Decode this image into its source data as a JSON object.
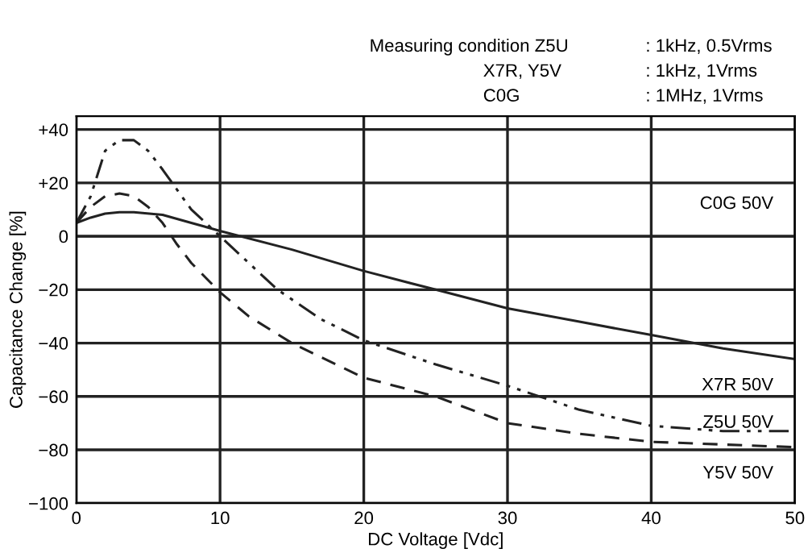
{
  "chart_data": {
    "type": "line",
    "xlabel": "DC Voltage [Vdc]",
    "ylabel": "Capacitance Change [%]",
    "xlim": [
      0,
      50
    ],
    "ylim": [
      -100,
      45
    ],
    "xticks": [
      0,
      10,
      20,
      30,
      40,
      50
    ],
    "yticks": [
      {
        "value": 40,
        "label": "+40"
      },
      {
        "value": 20,
        "label": "+20"
      },
      0,
      {
        "value": -20,
        "label": "−20"
      },
      {
        "value": -40,
        "label": "−40"
      },
      {
        "value": -60,
        "label": "−60"
      },
      {
        "value": -80,
        "label": "−80"
      },
      {
        "value": -100,
        "label": "−100"
      }
    ],
    "grid": true,
    "legend": false,
    "marker": "none",
    "annotations": [
      "Measuring condition Z5U",
      "X7R, Y5V",
      "C0G",
      ": 1kHz, 0.5Vrms",
      ": 1kHz, 1Vrms",
      ": 1MHz, 1Vrms"
    ],
    "series": [
      {
        "name": "C0G 50V",
        "color": "#222222",
        "line_style": "solid",
        "x": [
          0,
          50
        ],
        "values": [
          0,
          0
        ]
      },
      {
        "name": "X7R 50V",
        "color": "#222222",
        "line_style": "solid",
        "x": [
          0,
          1,
          2,
          3,
          4,
          6,
          8,
          10,
          15,
          20,
          25,
          30,
          35,
          40,
          45,
          50
        ],
        "values": [
          5,
          7,
          8.5,
          9,
          9,
          8,
          5,
          2,
          -5,
          -13,
          -20,
          -27,
          -32,
          -37,
          -42,
          -46
        ]
      },
      {
        "name": "Z5U 50V",
        "color": "#222222",
        "line_style": "dashdot",
        "x": [
          0,
          1,
          2,
          3,
          4,
          5,
          6,
          8,
          10,
          12,
          14,
          17,
          20,
          25,
          30,
          35,
          40,
          45,
          50
        ],
        "values": [
          5,
          15,
          32,
          36,
          36,
          32,
          25,
          10,
          0,
          -10,
          -20,
          -31,
          -39,
          -48,
          -56,
          -65,
          -71,
          -73,
          -73
        ]
      },
      {
        "name": "Y5V 50V",
        "color": "#222222",
        "line_style": "dashed",
        "x": [
          0,
          1,
          2,
          3,
          4,
          5,
          6,
          7,
          8,
          10,
          12,
          15,
          20,
          25,
          30,
          35,
          40,
          45,
          50
        ],
        "values": [
          5,
          11,
          15,
          16,
          15,
          11,
          5,
          -3,
          -10,
          -21,
          -30,
          -40,
          -53,
          -60,
          -70,
          -74,
          -77,
          -78,
          -79
        ]
      }
    ]
  }
}
